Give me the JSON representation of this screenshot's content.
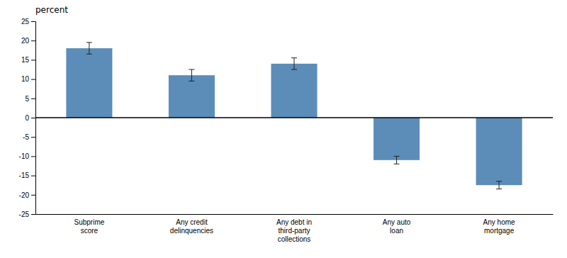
{
  "chart_data": {
    "type": "bar",
    "ylabel": "percent",
    "categories": [
      "Subprime\nscore",
      "Any credit\ndelinquencies",
      "Any debt in\nthird-party\ncollections",
      "Any auto\nloan",
      "Any home\nmortgage"
    ],
    "values": [
      18.0,
      11.0,
      14.0,
      -11.0,
      -17.5
    ],
    "errors": [
      1.5,
      1.5,
      1.5,
      1.0,
      1.0
    ],
    "color": "#5b8db8",
    "ylim": [
      -25,
      25
    ],
    "yticks": [
      -25,
      -20,
      -15,
      -10,
      -5,
      0,
      5,
      10,
      15,
      20,
      25
    ],
    "grid": false
  }
}
